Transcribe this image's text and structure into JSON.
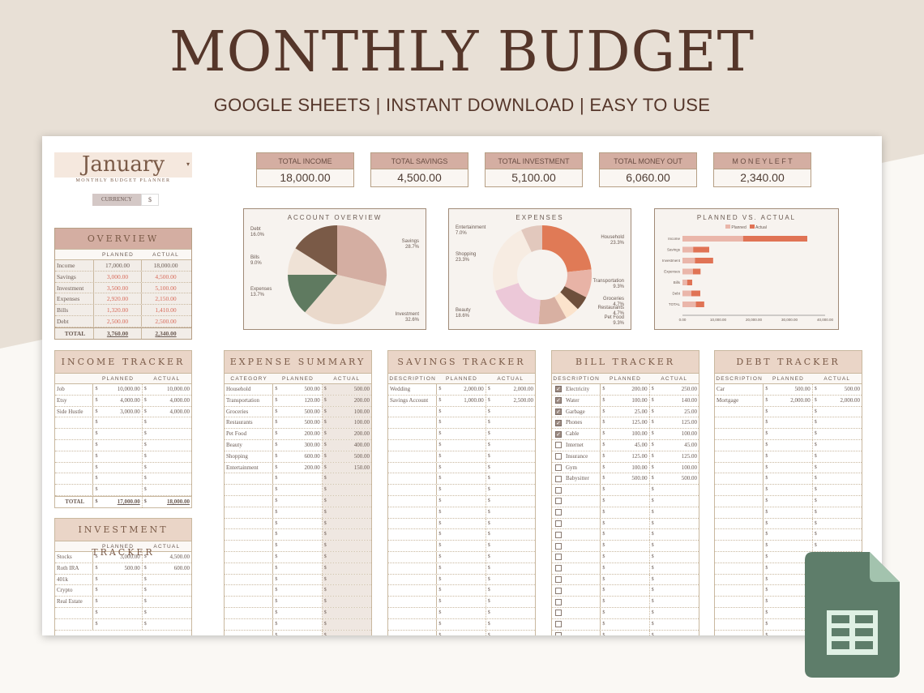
{
  "banner": {
    "title": "MONTHLY BUDGET",
    "subtitle": "GOOGLE SHEETS | INSTANT DOWNLOAD | EASY TO USE"
  },
  "header": {
    "month": "January",
    "dropdown_icon": "chevron-down-icon",
    "subtitle": "MONTHLY BUDGET PLANNER",
    "currency_label": "CURRENCY",
    "currency_value": "$"
  },
  "kpis": [
    {
      "label": "TOTAL INCOME",
      "value": "18,000.00"
    },
    {
      "label": "TOTAL SAVINGS",
      "value": "4,500.00"
    },
    {
      "label": "TOTAL INVESTMENT",
      "value": "5,100.00"
    },
    {
      "label": "TOTAL MONEY OUT",
      "value": "6,060.00"
    },
    {
      "label": "M O N E Y  L E F T",
      "value": "2,340.00"
    }
  ],
  "overview": {
    "title": "OVERVIEW",
    "cols": [
      "",
      "PLANNED",
      "ACTUAL"
    ],
    "rows": [
      {
        "label": "Income",
        "planned": "17,000.00",
        "actual": "18,000.00",
        "accent": false
      },
      {
        "label": "Savings",
        "planned": "3,000.00",
        "actual": "4,500.00",
        "accent": true
      },
      {
        "label": "Investment",
        "planned": "3,500.00",
        "actual": "5,100.00",
        "accent": true
      },
      {
        "label": "Expenses",
        "planned": "2,920.00",
        "actual": "2,150.00",
        "accent": true
      },
      {
        "label": "Bills",
        "planned": "1,320.00",
        "actual": "1,410.00",
        "accent": true
      },
      {
        "label": "Debt",
        "planned": "2,500.00",
        "actual": "2,500.00",
        "accent": true
      }
    ],
    "total": {
      "label": "TOTAL",
      "planned": "3,760.00",
      "actual": "2,340.00"
    }
  },
  "chart_data": [
    {
      "type": "pie",
      "title": "ACCOUNT OVERVIEW",
      "categories": [
        "Savings",
        "Investment",
        "Expenses",
        "Bills",
        "Debt"
      ],
      "values": [
        28.7,
        32.6,
        13.7,
        9.0,
        16.0
      ],
      "labels": [
        "28.7%",
        "32.6%",
        "13.7%",
        "9.0%",
        "16.0%"
      ],
      "colors": [
        "#d4aea2",
        "#ead9cb",
        "#5f7a60",
        "#efe2d6",
        "#7a5a47"
      ]
    },
    {
      "type": "pie",
      "title": "EXPENSES",
      "donut": true,
      "categories": [
        "Household",
        "Transportation",
        "Groceries",
        "Restaurants",
        "Pet Food",
        "Beauty",
        "Shopping",
        "Entertainment"
      ],
      "values": [
        23.3,
        9.3,
        4.7,
        4.7,
        9.3,
        18.6,
        23.3,
        7.0
      ],
      "labels": [
        "23.3%",
        "9.3%",
        "4.7%",
        "4.7%",
        "9.3%",
        "18.6%",
        "23.3%",
        "7.0%"
      ],
      "colors": [
        "#e07a56",
        "#e8b3a6",
        "#6e4f3c",
        "#fbe3cc",
        "#d8b0a2",
        "#ecc8d8",
        "#f7ece2",
        "#e2c8bd"
      ]
    },
    {
      "type": "bar",
      "orientation": "horizontal",
      "stacked": true,
      "title": "PLANNED VS. ACTUAL",
      "categories": [
        "Income",
        "Savings",
        "Investment",
        "Expenses",
        "Bills",
        "Debt",
        "TOTAL"
      ],
      "series": [
        {
          "name": "Planned",
          "values": [
            17000,
            3000,
            3500,
            2920,
            1320,
            2500,
            3760
          ],
          "color": "#eab6aa"
        },
        {
          "name": "Actual",
          "values": [
            18000,
            4500,
            5100,
            2150,
            1410,
            2500,
            2340
          ],
          "color": "#e07355"
        }
      ],
      "xlim": [
        0,
        40000
      ],
      "xticks": [
        "0.00",
        "10,000.00",
        "20,000.00",
        "30,000.00",
        "40,000.00"
      ],
      "legend_position": "top"
    }
  ],
  "income": {
    "title": "INCOME TRACKER",
    "cols": [
      "",
      "PLANNED",
      "ACTUAL"
    ],
    "rows": [
      [
        "Job",
        "10,000.00",
        "10,000.00"
      ],
      [
        "Etsy",
        "4,000.00",
        "4,000.00"
      ],
      [
        "Side Hustle",
        "3,000.00",
        "4,000.00"
      ],
      [
        "",
        "",
        ""
      ],
      [
        "",
        "",
        ""
      ],
      [
        "",
        "",
        ""
      ],
      [
        "",
        "",
        ""
      ],
      [
        "",
        "",
        ""
      ],
      [
        "",
        "",
        ""
      ],
      [
        "",
        "",
        ""
      ]
    ],
    "total": {
      "label": "TOTAL",
      "planned": "17,000.00",
      "actual": "18,000.00"
    }
  },
  "investment": {
    "title": "INVESTMENT TRACKER",
    "cols": [
      "",
      "PLANNED",
      "ACTUAL"
    ],
    "rows": [
      [
        "Stocks",
        "3,000.00",
        "4,500.00"
      ],
      [
        "Roth IRA",
        "500.00",
        "600.00"
      ],
      [
        "401k",
        "",
        ""
      ],
      [
        "Crypto",
        "",
        ""
      ],
      [
        "Real Estate",
        "",
        ""
      ],
      [
        "",
        "",
        ""
      ],
      [
        "",
        "",
        ""
      ]
    ]
  },
  "expense": {
    "title": "EXPENSE SUMMARY",
    "cols": [
      "CATEGORY",
      "PLANNED",
      "ACTUAL"
    ],
    "rows": [
      [
        "Household",
        "500.00",
        "500.00"
      ],
      [
        "Transportation",
        "120.00",
        "200.00"
      ],
      [
        "Groceries",
        "500.00",
        "100.00"
      ],
      [
        "Restaurants",
        "500.00",
        "100.00"
      ],
      [
        "Pet Food",
        "200.00",
        "200.00"
      ],
      [
        "Beauty",
        "300.00",
        "400.00"
      ],
      [
        "Shopping",
        "600.00",
        "500.00"
      ],
      [
        "Entertainment",
        "200.00",
        "150.00"
      ]
    ]
  },
  "savings": {
    "title": "SAVINGS TRACKER",
    "cols": [
      "DESCRIPTION",
      "PLANNED",
      "ACTUAL"
    ],
    "rows": [
      [
        "Wedding",
        "2,000.00",
        "2,000.00"
      ],
      [
        "Savings Account",
        "1,000.00",
        "2,500.00"
      ]
    ]
  },
  "bills": {
    "title": "BILL TRACKER",
    "cols": [
      "DESCRIPTION",
      "PLANNED",
      "ACTUAL"
    ],
    "rows": [
      [
        true,
        "Electricity",
        "200.00",
        "250.00"
      ],
      [
        true,
        "Water",
        "100.00",
        "140.00"
      ],
      [
        true,
        "Garbage",
        "25.00",
        "25.00"
      ],
      [
        true,
        "Phones",
        "125.00",
        "125.00"
      ],
      [
        true,
        "Cable",
        "100.00",
        "100.00"
      ],
      [
        false,
        "Internet",
        "45.00",
        "45.00"
      ],
      [
        false,
        "Insurance",
        "125.00",
        "125.00"
      ],
      [
        false,
        "Gym",
        "100.00",
        "100.00"
      ],
      [
        false,
        "Babysitter",
        "500.00",
        "500.00"
      ]
    ]
  },
  "debt": {
    "title": "DEBT TRACKER",
    "cols": [
      "DESCRIPTION",
      "PLANNED",
      "ACTUAL"
    ],
    "rows": [
      [
        "Car",
        "500.00",
        "500.00"
      ],
      [
        "Mortgage",
        "2,000.00",
        "2,000.00"
      ]
    ]
  },
  "currency_symbol": "$",
  "colors": {
    "title_brown": "#55362a",
    "rose": "#d4aea2",
    "blush": "#ead5c7",
    "accent_red": "#d86b5a",
    "sheets_green": "#5e7d6a"
  }
}
